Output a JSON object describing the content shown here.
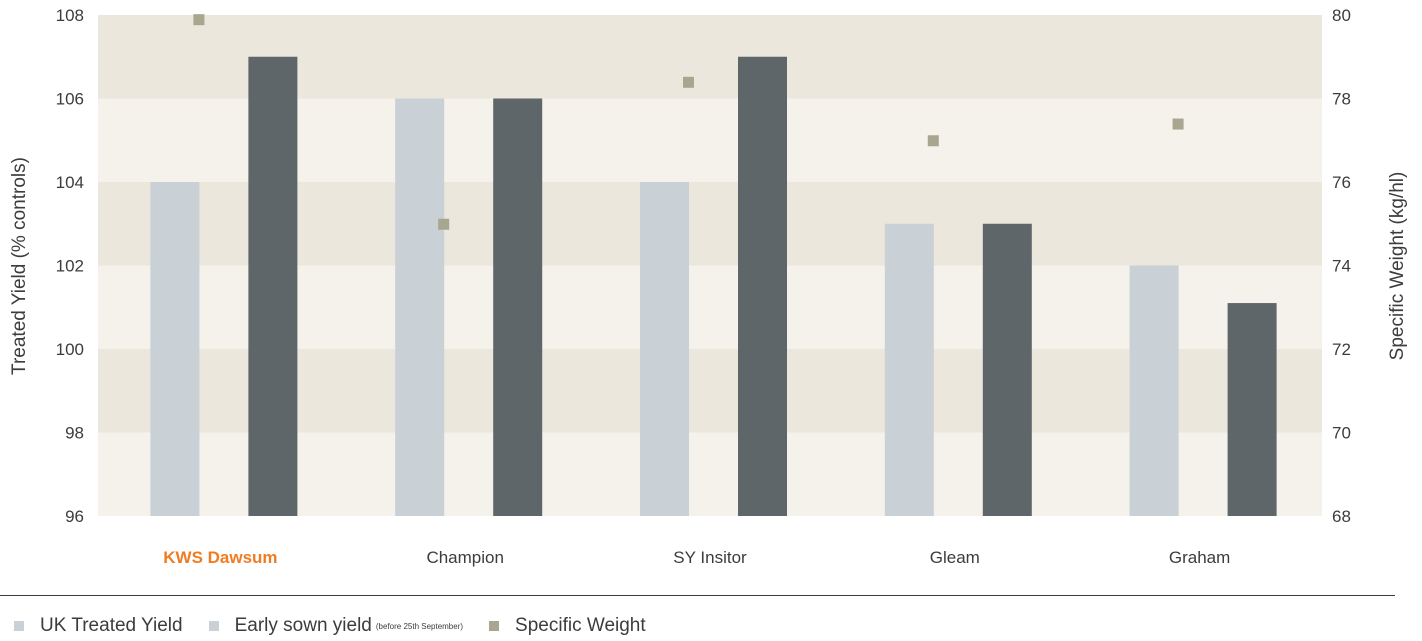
{
  "chart_data": {
    "type": "bar",
    "categories": [
      "KWS Dawsum",
      "Champion",
      "SY Insitor",
      "Gleam",
      "Graham"
    ],
    "highlight_category": "KWS Dawsum",
    "highlight_color": "#f07c22",
    "series": [
      {
        "name": "UK Treated Yield",
        "axis": "left",
        "kind": "bar",
        "color": "#c9d0d6",
        "values": [
          104,
          106,
          104,
          103,
          102
        ]
      },
      {
        "name": "Early sown yield",
        "name_note": "(before 25th September)",
        "axis": "left",
        "kind": "bar",
        "color": "#5f6669",
        "values": [
          107,
          106,
          107,
          103,
          101.1
        ]
      },
      {
        "name": "Specific Weight",
        "axis": "right",
        "kind": "scatter",
        "color": "#a8a68e",
        "values": [
          79.9,
          75.0,
          78.4,
          77.0,
          77.4
        ]
      }
    ],
    "ylabel": "Treated Yield (% controls)",
    "y2label": "Specific Weight (kg/hl)",
    "ylim": [
      96,
      108
    ],
    "y2lim": [
      68,
      80
    ],
    "yticks": [
      "96",
      "98",
      "100",
      "102",
      "104",
      "106",
      "108"
    ],
    "y2ticks": [
      "68",
      "70",
      "72",
      "74",
      "76",
      "78",
      "80"
    ],
    "band_colors": [
      "#ebe7dc",
      "#f4f2eb"
    ],
    "grid": false,
    "legend_position": "bottom"
  },
  "legend": [
    {
      "label": "UK Treated Yield",
      "note": "",
      "color": "#c9d0d6"
    },
    {
      "label": "Early sown yield",
      "note": "(before 25th September)",
      "color": "#c9d0d6"
    },
    {
      "label": "Specific Weight",
      "note": "",
      "color": "#a8a68e"
    }
  ]
}
